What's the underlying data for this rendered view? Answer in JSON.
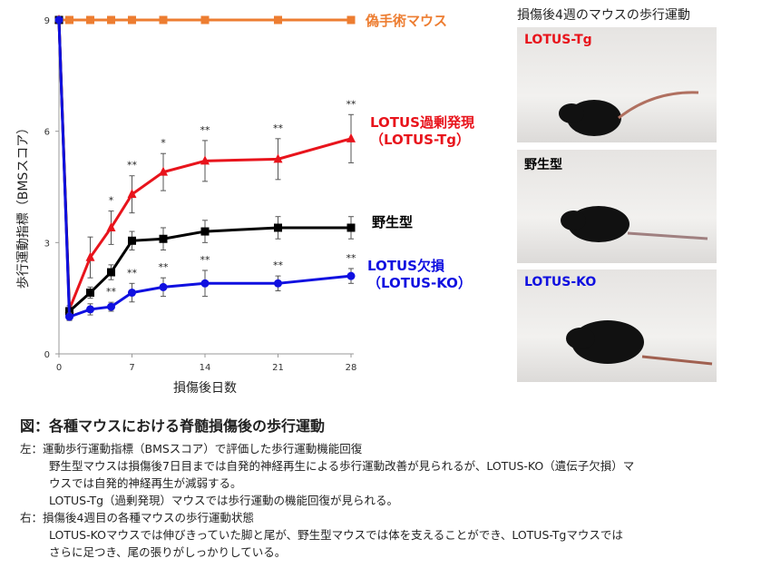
{
  "chart_data": {
    "type": "line",
    "ylabel": "歩行運動指標（BMSスコア）",
    "xlabel": "損傷後日数",
    "x": [
      0,
      1,
      3,
      5,
      7,
      10,
      14,
      21,
      28
    ],
    "xticks": [
      0,
      7,
      14,
      21,
      28
    ],
    "yticks": [
      0,
      3,
      6,
      9
    ],
    "xlim": [
      0,
      28
    ],
    "ylim": [
      0,
      9
    ],
    "series": [
      {
        "name": "偽手術マウス",
        "color": "#ed7d31",
        "marker": "square",
        "values": [
          9,
          9,
          9,
          9,
          9,
          9,
          9,
          9,
          9
        ],
        "err": [
          0,
          0,
          0,
          0,
          0,
          0,
          0,
          0,
          0
        ],
        "stars": [
          "",
          "",
          "",
          "",
          "",
          "",
          "",
          "",
          ""
        ]
      },
      {
        "name": "LOTUS過剰発現（LOTUS-Tg）",
        "name_line1": "LOTUS過剰発現",
        "name_line2": "（LOTUS-Tg）",
        "color": "#e8141c",
        "marker": "triangle",
        "values": [
          9,
          1.2,
          2.6,
          3.4,
          4.3,
          4.9,
          5.2,
          5.25,
          5.8
        ],
        "err": [
          0,
          0.1,
          0.55,
          0.45,
          0.5,
          0.5,
          0.55,
          0.55,
          0.65
        ],
        "stars": [
          "",
          "",
          "",
          "*",
          "**",
          "*",
          "**",
          "**",
          "**"
        ]
      },
      {
        "name": "野生型",
        "color": "#000000",
        "marker": "square",
        "values": [
          9,
          1.15,
          1.65,
          2.2,
          3.05,
          3.1,
          3.3,
          3.4,
          3.4
        ],
        "err": [
          0,
          0.1,
          0.15,
          0.2,
          0.25,
          0.3,
          0.3,
          0.3,
          0.3
        ],
        "stars": [
          "",
          "",
          "",
          "",
          "",
          "",
          "",
          "",
          ""
        ]
      },
      {
        "name": "LOTUS欠損（LOTUS-KO）",
        "name_line1": "LOTUS欠損",
        "name_line2": "（LOTUS-KO）",
        "color": "#1010e0",
        "marker": "circle",
        "values": [
          9,
          1.0,
          1.2,
          1.27,
          1.65,
          1.8,
          1.9,
          1.9,
          2.1
        ],
        "err": [
          0,
          0.1,
          0.15,
          0.12,
          0.25,
          0.25,
          0.35,
          0.2,
          0.2
        ],
        "stars": [
          "",
          "",
          "",
          "**",
          "**",
          "**",
          "**",
          "**",
          "**"
        ]
      }
    ]
  },
  "photos": {
    "title": "損傷後4週のマウスの歩行運動",
    "panels": [
      {
        "label": "LOTUS-Tg",
        "color": "#e8141c"
      },
      {
        "label": "野生型",
        "color": "#000000"
      },
      {
        "label": "LOTUS-KO",
        "color": "#1010e0"
      }
    ]
  },
  "caption": {
    "title": "図：各種マウスにおける脊髄損傷後の歩行運動",
    "left_head": "左：運動歩行運動指標（BMSスコア）で評価した歩行運動機能回復",
    "left_l1": "野生型マウスは損傷後7日目までは自発的神経再生による歩行運動改善が見られるが、LOTUS-KO（遺伝子欠損）マ",
    "left_l2": "ウスでは自発的神経再生が減弱する。",
    "left_l3": "LOTUS-Tg（過剰発現）マウスでは歩行運動の機能回復が見られる。",
    "right_head": "右：損傷後4週目の各種マウスの歩行運動状態",
    "right_l1": "LOTUS-KOマウスでは伸びきっていた脚と尾が、野生型マウスでは体を支えることができ、LOTUS-Tgマウスでは",
    "right_l2": "さらに足つき、尾の張りがしっかりしている。"
  }
}
